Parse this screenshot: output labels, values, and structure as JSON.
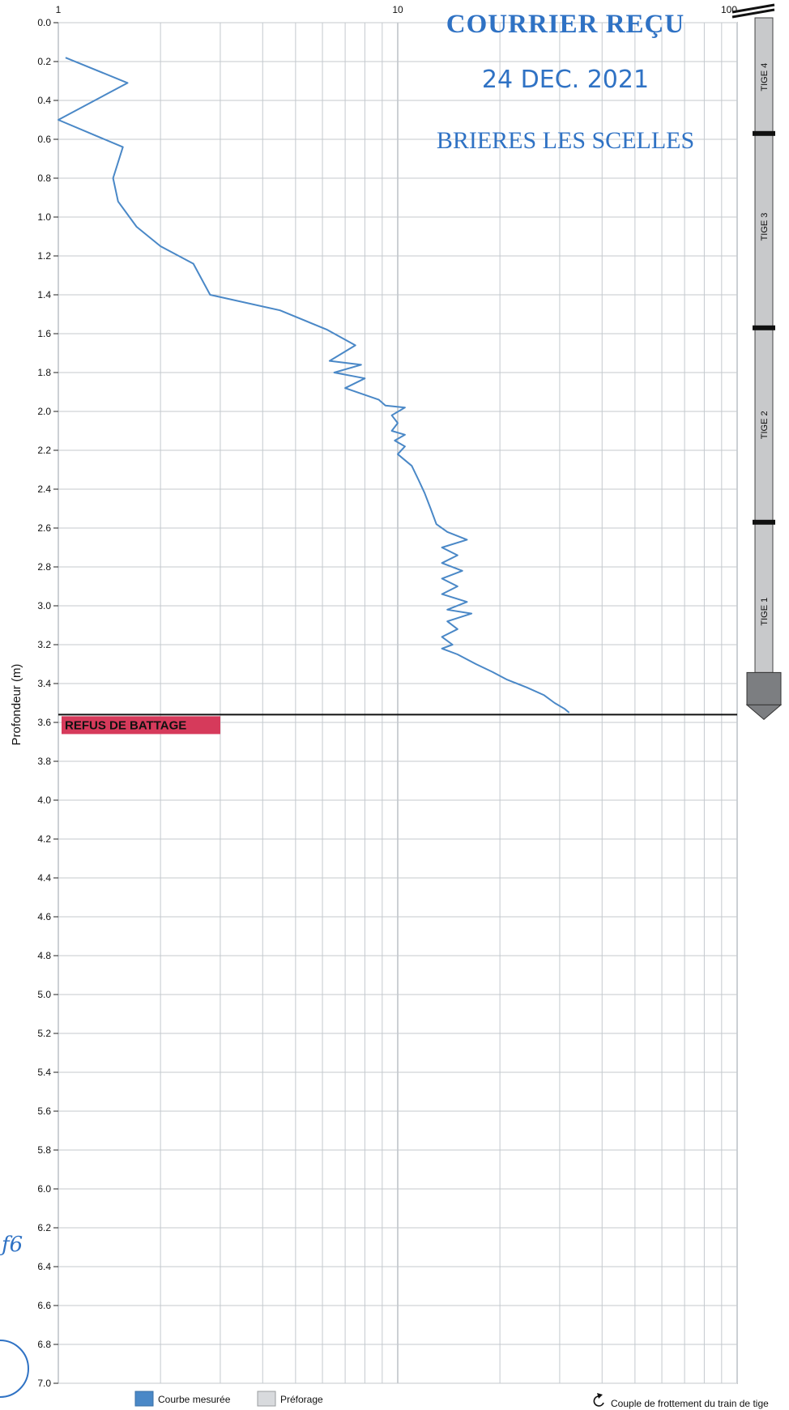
{
  "chart_data": {
    "type": "line",
    "ylabel": "Profondeur (m)",
    "xlabel": "",
    "xscale": "log",
    "xlim": [
      1,
      100
    ],
    "ylim": [
      0.0,
      7.0
    ],
    "y_inverted": true,
    "grid": true,
    "x_tick_labels": [
      "1",
      "10",
      "100"
    ],
    "y_tick_labels": [
      "0.0",
      "0.2",
      "0.4",
      "0.6",
      "0.8",
      "1.0",
      "1.2",
      "1.4",
      "1.6",
      "1.8",
      "2.0",
      "2.2",
      "2.4",
      "2.6",
      "2.8",
      "3.0",
      "3.2",
      "3.4",
      "3.6",
      "3.8",
      "4.0",
      "4.2",
      "4.4",
      "4.6",
      "4.8",
      "5.0",
      "5.2",
      "5.4",
      "5.6",
      "5.8",
      "6.0",
      "6.2",
      "6.4",
      "6.6",
      "6.8",
      "7.0"
    ],
    "series": [
      {
        "name": "Courbe mesurée",
        "color": "#4a88c7",
        "points": [
          [
            1.05,
            0.18
          ],
          [
            1.6,
            0.31
          ],
          [
            1.0,
            0.5
          ],
          [
            1.55,
            0.64
          ],
          [
            1.45,
            0.8
          ],
          [
            1.5,
            0.92
          ],
          [
            1.7,
            1.05
          ],
          [
            2.0,
            1.15
          ],
          [
            2.5,
            1.24
          ],
          [
            2.8,
            1.4
          ],
          [
            4.5,
            1.48
          ],
          [
            6.2,
            1.58
          ],
          [
            7.5,
            1.66
          ],
          [
            6.3,
            1.74
          ],
          [
            7.8,
            1.76
          ],
          [
            6.5,
            1.8
          ],
          [
            8.0,
            1.83
          ],
          [
            7.0,
            1.88
          ],
          [
            8.8,
            1.94
          ],
          [
            9.2,
            1.97
          ],
          [
            10.5,
            1.98
          ],
          [
            9.6,
            2.02
          ],
          [
            10.0,
            2.06
          ],
          [
            9.6,
            2.1
          ],
          [
            10.5,
            2.12
          ],
          [
            9.8,
            2.15
          ],
          [
            10.5,
            2.18
          ],
          [
            10.0,
            2.22
          ],
          [
            11.0,
            2.28
          ],
          [
            11.5,
            2.35
          ],
          [
            12.0,
            2.42
          ],
          [
            12.5,
            2.5
          ],
          [
            13.0,
            2.58
          ],
          [
            14.0,
            2.62
          ],
          [
            16.0,
            2.66
          ],
          [
            13.5,
            2.7
          ],
          [
            15.0,
            2.74
          ],
          [
            13.5,
            2.78
          ],
          [
            15.5,
            2.82
          ],
          [
            13.5,
            2.86
          ],
          [
            15.0,
            2.9
          ],
          [
            13.5,
            2.94
          ],
          [
            16.0,
            2.98
          ],
          [
            14.0,
            3.02
          ],
          [
            16.5,
            3.04
          ],
          [
            14.0,
            3.08
          ],
          [
            15.0,
            3.12
          ],
          [
            13.5,
            3.16
          ],
          [
            14.5,
            3.2
          ],
          [
            13.5,
            3.22
          ],
          [
            15.0,
            3.25
          ],
          [
            17.0,
            3.3
          ],
          [
            19.0,
            3.34
          ],
          [
            21.0,
            3.38
          ],
          [
            24.0,
            3.42
          ],
          [
            27.0,
            3.46
          ],
          [
            29.0,
            3.5
          ],
          [
            31.0,
            3.53
          ],
          [
            32.0,
            3.55
          ]
        ]
      }
    ],
    "annotations": {
      "refus_depth": 3.56,
      "refus_label": "REFUS DE BATTAGE"
    },
    "legend": [
      {
        "label": "Courbe mesurée",
        "color": "#4a88c7"
      },
      {
        "label": "Préforage",
        "color": "#d8dadd"
      },
      {
        "label": "Couple de frottement du train de tige",
        "icon": "rotation-arrow-icon"
      }
    ]
  },
  "rod": {
    "labels": [
      "TIGE 4",
      "TIGE 3",
      "TIGE 2",
      "TIGE 1"
    ],
    "joints_depth": [
      0.57,
      1.57,
      2.57
    ],
    "tip_depth": 3.56,
    "color": "#c8c9cb"
  },
  "stamp": {
    "title": "COURRIER REÇU",
    "date": "24 DEC. 2021",
    "place": "BRIERES LES SCELLES",
    "color": "#2f72c4"
  },
  "margin_note": "ƒ6"
}
